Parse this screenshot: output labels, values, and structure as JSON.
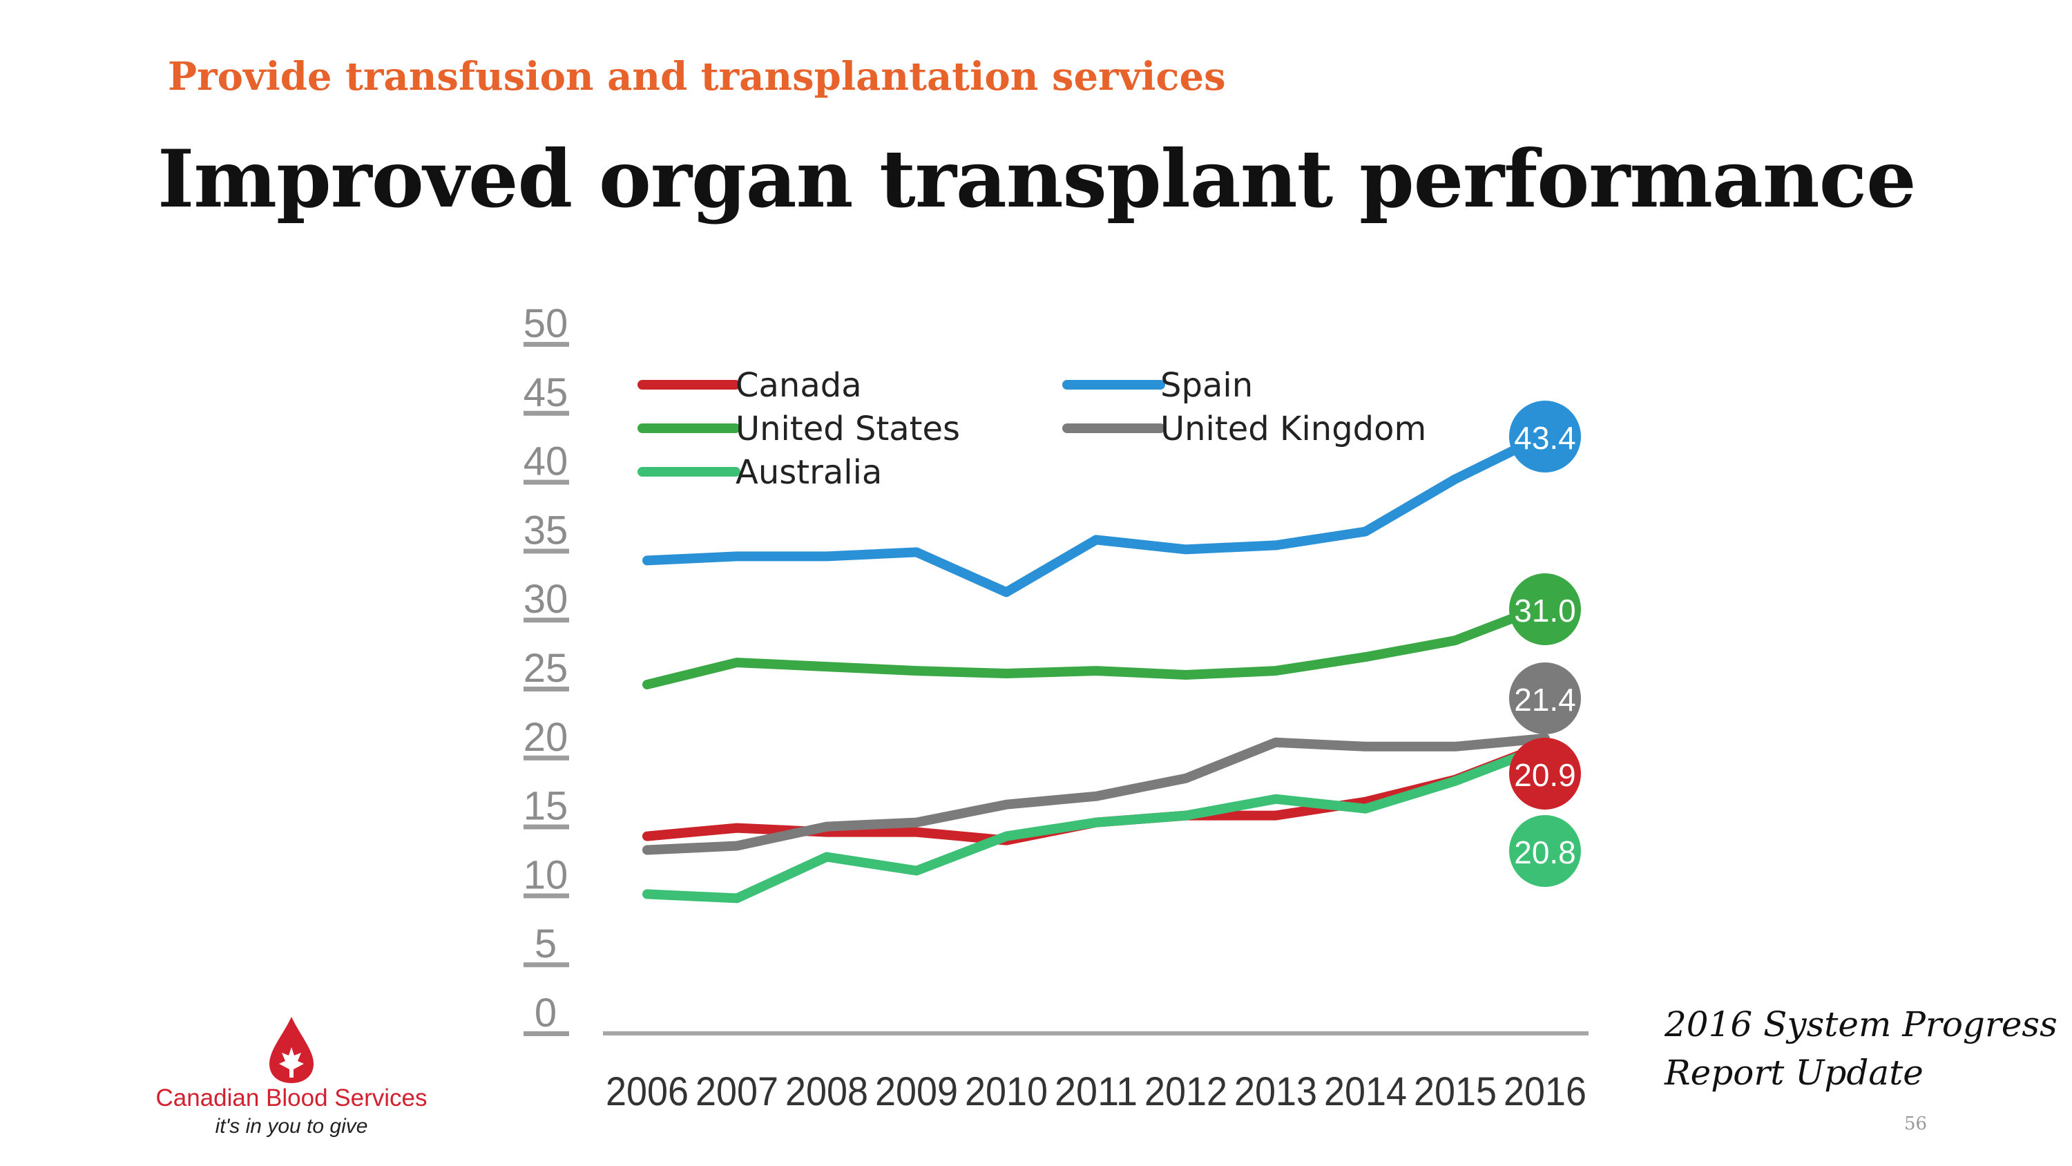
{
  "header": {
    "subtitle": "Provide transfusion and transplantation services",
    "title": "Improved organ transplant performance"
  },
  "footer": {
    "report_line1": "2016 System Progress",
    "report_line2": "Report Update",
    "page_number": "56"
  },
  "logo": {
    "name": "Canadian Blood Services",
    "tagline": "it's in you to give",
    "color": "#d2202f"
  },
  "chart_data": {
    "type": "line",
    "title": "",
    "xlabel": "",
    "ylabel": "",
    "x": [
      "2006",
      "2007",
      "2008",
      "2009",
      "2010",
      "2011",
      "2012",
      "2013",
      "2014",
      "2015",
      "2016"
    ],
    "yticks": [
      "0",
      "5",
      "10",
      "15",
      "20",
      "25",
      "30",
      "35",
      "40",
      "45",
      "50"
    ],
    "ylim": [
      0,
      50
    ],
    "grid": false,
    "legend_position": "top-left",
    "series": [
      {
        "name": "Canada",
        "color": "#cc2229",
        "values": [
          14.3,
          14.9,
          14.6,
          14.6,
          14.0,
          15.3,
          15.8,
          15.8,
          16.8,
          18.4,
          20.9
        ],
        "end_label": "20.9"
      },
      {
        "name": "Spain",
        "color": "#2a91d7",
        "values": [
          34.3,
          34.6,
          34.6,
          34.9,
          32.0,
          35.8,
          35.1,
          35.4,
          36.4,
          40.2,
          43.4
        ],
        "end_label": "43.4"
      },
      {
        "name": "United States",
        "color": "#3aa845",
        "values": [
          25.3,
          26.9,
          26.6,
          26.3,
          26.1,
          26.3,
          26.0,
          26.3,
          27.3,
          28.5,
          31.0
        ],
        "end_label": "31.0"
      },
      {
        "name": "United Kingdom",
        "color": "#7b7b7b",
        "values": [
          13.3,
          13.6,
          15.0,
          15.3,
          16.6,
          17.2,
          18.5,
          21.1,
          20.8,
          20.8,
          21.4
        ],
        "end_label": "21.4"
      },
      {
        "name": "Australia",
        "color": "#3cc075",
        "values": [
          10.1,
          9.8,
          12.8,
          11.8,
          14.3,
          15.3,
          15.8,
          17.0,
          16.3,
          18.3,
          20.8
        ],
        "end_label": "20.8"
      }
    ]
  }
}
